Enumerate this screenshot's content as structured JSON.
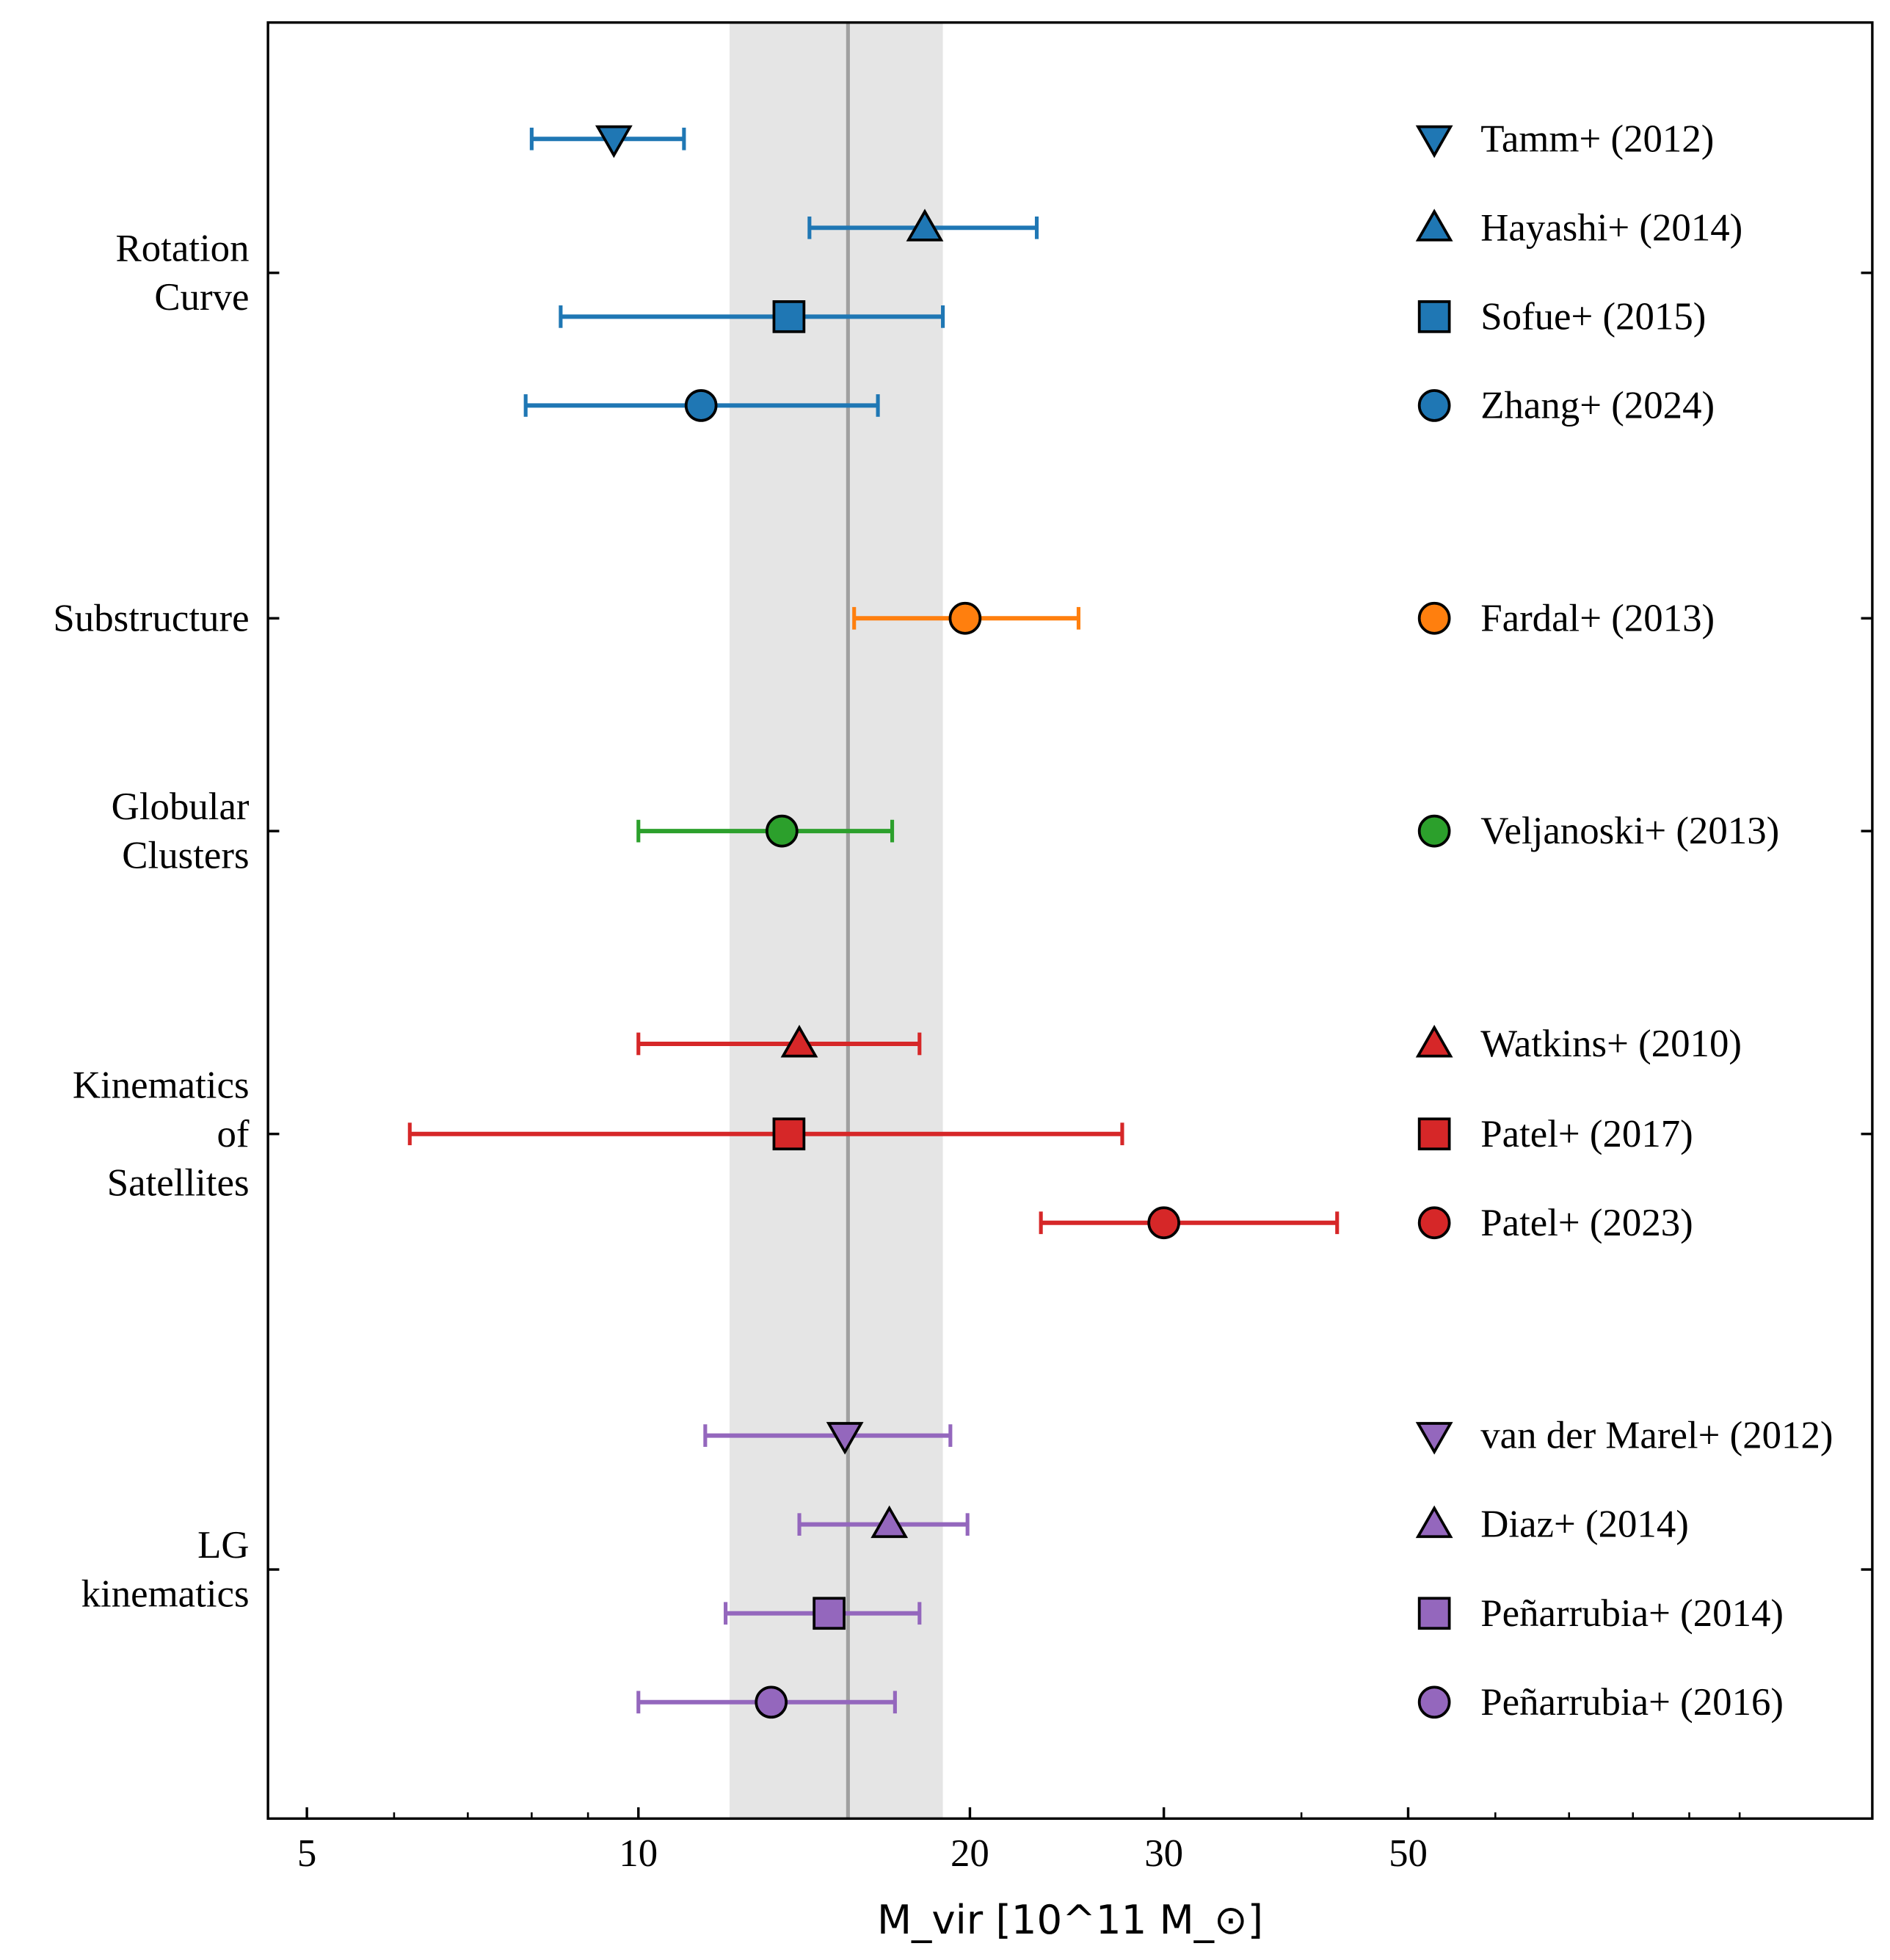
{
  "chart_data": {
    "type": "scatter",
    "title": "",
    "xlabel": "M_vir [10^11 M_⊙]",
    "xlabel_parts": {
      "main": "M",
      "sub": "vir",
      "bracket_open": " [10",
      "sup": "11",
      "unit": " M",
      "unit_sub": "⊙",
      "bracket_close": "]"
    },
    "xscale": "log",
    "xlim": [
      4.6,
      132
    ],
    "xticks": [
      5,
      10,
      20,
      30,
      50
    ],
    "xtick_labels": [
      "5",
      "10",
      "20",
      "30",
      "50"
    ],
    "grid": false,
    "legend_placement": "right",
    "reference_line": {
      "value": 15.5,
      "color": "#a0a0a0"
    },
    "reference_band": {
      "range": [
        12.1,
        18.9
      ],
      "color": "#e5e5e5"
    },
    "groups": [
      {
        "label": [
          "Rotation",
          "Curve"
        ],
        "color": "#1f77b4"
      },
      {
        "label": [
          "Substructure"
        ],
        "color": "#ff7f0e"
      },
      {
        "label": [
          "Globular",
          "Clusters"
        ],
        "color": "#2ca02c"
      },
      {
        "label": [
          "Kinematics",
          "of",
          "Satellites"
        ],
        "color": "#d62728"
      },
      {
        "label": [
          "LG",
          "kinematics"
        ],
        "color": "#9467bd"
      }
    ],
    "series": [
      {
        "name": "Tamm+ (2012)",
        "group": 0,
        "marker": "triangle-down",
        "value": 9.5,
        "low": 8.0,
        "high": 11.0
      },
      {
        "name": "Hayashi+ (2014)",
        "group": 0,
        "marker": "triangle-up",
        "value": 18.2,
        "low": 14.3,
        "high": 23.0
      },
      {
        "name": "Sofue+ (2015)",
        "group": 0,
        "marker": "square",
        "value": 13.7,
        "low": 8.5,
        "high": 18.9
      },
      {
        "name": "Zhang+ (2024)",
        "group": 0,
        "marker": "circle",
        "value": 11.4,
        "low": 7.9,
        "high": 16.5
      },
      {
        "name": "Fardal+ (2013)",
        "group": 1,
        "marker": "circle",
        "value": 19.8,
        "low": 15.7,
        "high": 25.1
      },
      {
        "name": "Veljanoski+ (2013)",
        "group": 2,
        "marker": "circle",
        "value": 13.5,
        "low": 10.0,
        "high": 17.0
      },
      {
        "name": "Watkins+ (2010)",
        "group": 3,
        "marker": "triangle-up",
        "value": 14.0,
        "low": 10.0,
        "high": 18.0
      },
      {
        "name": "Patel+ (2017)",
        "group": 3,
        "marker": "square",
        "value": 13.7,
        "low": 6.2,
        "high": 27.5
      },
      {
        "name": "Patel+ (2023)",
        "group": 3,
        "marker": "circle",
        "value": 30.0,
        "low": 23.2,
        "high": 43.1
      },
      {
        "name": "van der Marel+ (2012)",
        "group": 4,
        "marker": "triangle-down",
        "value": 15.4,
        "low": 11.5,
        "high": 19.2
      },
      {
        "name": "Diaz+ (2014)",
        "group": 4,
        "marker": "triangle-up",
        "value": 16.9,
        "low": 14.0,
        "high": 19.9
      },
      {
        "name": "Peñarrubia+ (2014)",
        "group": 4,
        "marker": "square",
        "value": 14.9,
        "low": 12.0,
        "high": 18.0
      },
      {
        "name": "Peñarrubia+ (2016)",
        "group": 4,
        "marker": "circle",
        "value": 13.2,
        "low": 10.0,
        "high": 17.1
      }
    ]
  }
}
